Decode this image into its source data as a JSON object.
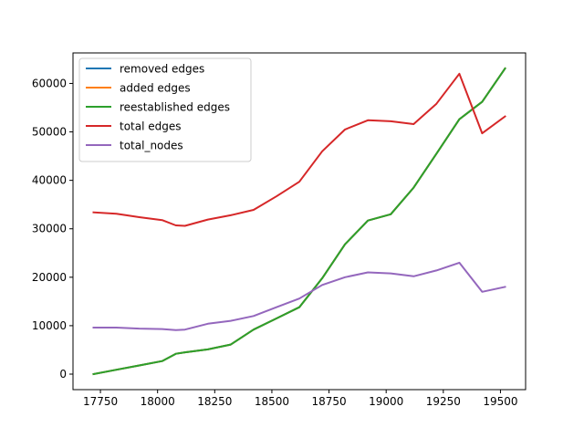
{
  "chart_data": {
    "type": "line",
    "title": "",
    "xlabel": "",
    "ylabel": "",
    "xlim": [
      17630,
      19610
    ],
    "ylim": [
      -3200,
      66300
    ],
    "x_ticks": [
      17750,
      18000,
      18250,
      18500,
      18750,
      19000,
      19250,
      19500
    ],
    "x_tick_labels": [
      "17750",
      "18000",
      "18250",
      "18500",
      "18750",
      "19000",
      "19250",
      "19500"
    ],
    "y_ticks": [
      0,
      10000,
      20000,
      30000,
      40000,
      50000,
      60000
    ],
    "y_tick_labels": [
      "0",
      "10000",
      "20000",
      "30000",
      "40000",
      "50000",
      "60000"
    ],
    "grid": false,
    "legend_position": "top-left",
    "x": [
      17720,
      17820,
      17920,
      18020,
      18080,
      18120,
      18220,
      18320,
      18420,
      18520,
      18620,
      18720,
      18820,
      18920,
      19020,
      19120,
      19220,
      19320,
      19420,
      19520
    ],
    "series": [
      {
        "name": "removed edges",
        "color": "#1f77b4",
        "values": [
          0,
          900,
          1800,
          2700,
          4200,
          4500,
          5100,
          6100,
          9200,
          11500,
          13800,
          19800,
          26800,
          31700,
          33000,
          38500,
          45500,
          52600,
          56200,
          63100
        ]
      },
      {
        "name": "added edges",
        "color": "#ff7f0e",
        "values": [
          0,
          900,
          1800,
          2700,
          4200,
          4500,
          5100,
          6100,
          9200,
          11500,
          13800,
          19800,
          26800,
          31700,
          33000,
          38500,
          45500,
          52600,
          56200,
          63100
        ]
      },
      {
        "name": "reestablished edges",
        "color": "#2ca02c",
        "values": [
          0,
          900,
          1800,
          2700,
          4200,
          4500,
          5100,
          6100,
          9200,
          11500,
          13800,
          19800,
          26800,
          31700,
          33000,
          38500,
          45500,
          52600,
          56200,
          63100
        ]
      },
      {
        "name": "total edges",
        "color": "#d62728",
        "values": [
          33400,
          33100,
          32400,
          31800,
          30700,
          30600,
          31900,
          32800,
          33900,
          36700,
          39700,
          46000,
          50500,
          52400,
          52200,
          51600,
          55800,
          62000,
          49700,
          53200
        ]
      },
      {
        "name": "total_nodes",
        "color": "#9467bd",
        "values": [
          9600,
          9600,
          9400,
          9300,
          9100,
          9200,
          10400,
          11000,
          12000,
          13800,
          15600,
          18400,
          20000,
          21000,
          20800,
          20200,
          21400,
          23000,
          17000,
          18000
        ]
      }
    ]
  }
}
